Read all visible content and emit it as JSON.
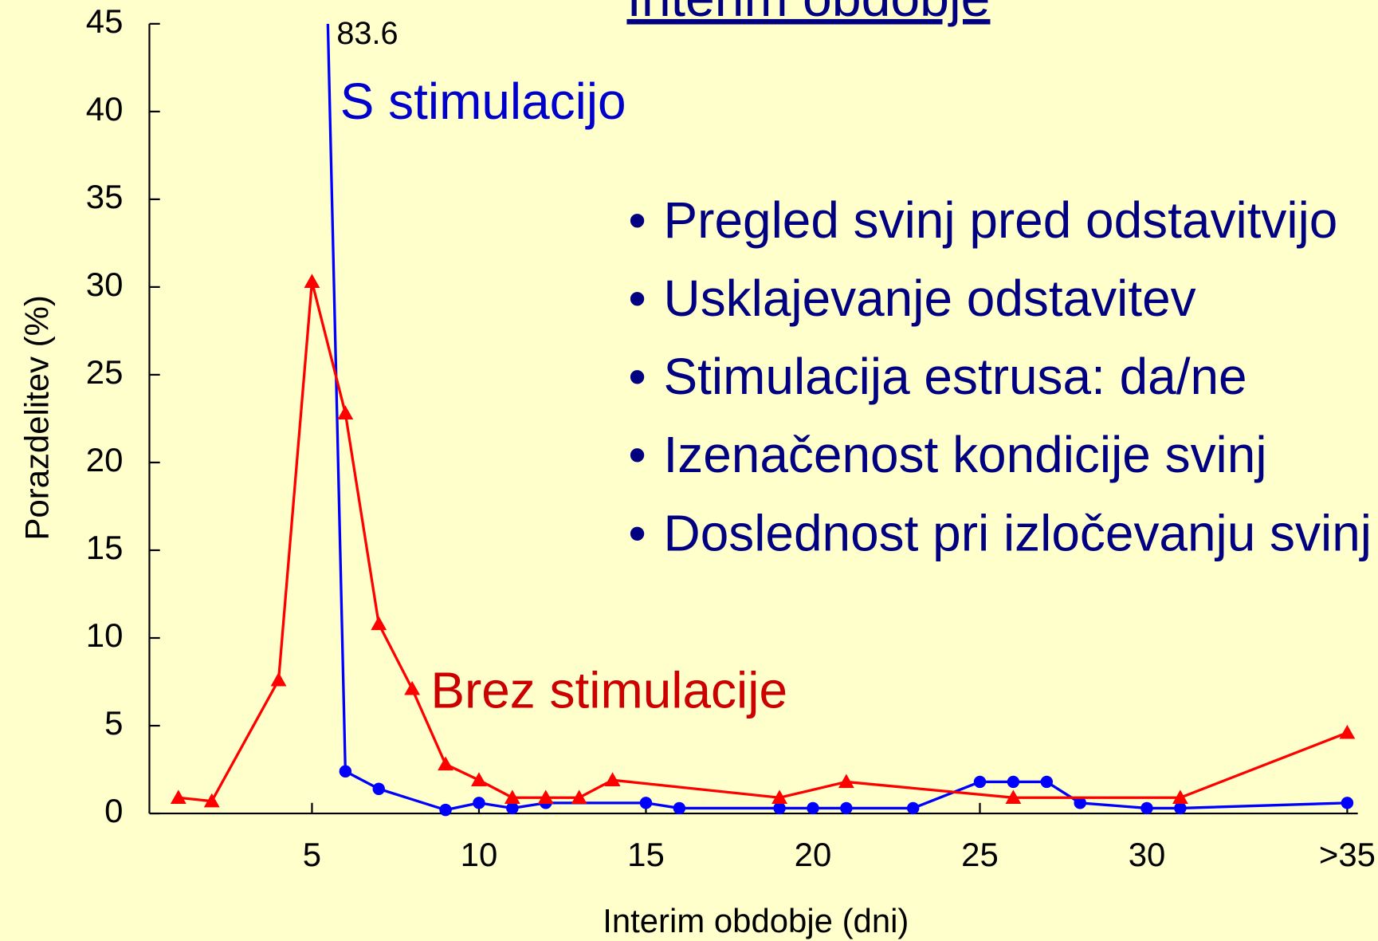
{
  "chart_data": {
    "type": "line",
    "title": "Interim obdobje",
    "xlabel": "Interim obdobje (dni)",
    "ylabel": "Porazdelitev (%)",
    "xlim": [
      0,
      36.3
    ],
    "ylim": [
      0,
      45
    ],
    "xticks": [
      5,
      10,
      15,
      20,
      25,
      30,
      {
        "value": 36,
        "label": ">35"
      }
    ],
    "yticks": [
      0,
      5,
      10,
      15,
      20,
      25,
      30,
      35,
      40,
      45
    ],
    "series": [
      {
        "name": "S stimulacijo",
        "color": "#0000ff",
        "marker": "circle",
        "x": [
          5,
          6,
          7,
          9,
          10,
          11,
          12,
          15,
          16,
          19,
          20,
          21,
          23,
          25,
          26,
          27,
          28,
          30,
          31,
          36
        ],
        "values": [
          83.6,
          2.4,
          1.4,
          0.2,
          0.6,
          0.3,
          0.6,
          0.6,
          0.3,
          0.3,
          0.3,
          0.3,
          0.3,
          1.8,
          1.8,
          1.8,
          0.6,
          0.3,
          0.3,
          0.6
        ],
        "value_labels": [
          "83.6",
          null,
          null,
          null,
          null,
          null,
          null,
          null,
          null,
          null,
          null,
          null,
          null,
          null,
          null,
          null,
          null,
          null,
          null,
          null
        ]
      },
      {
        "name": "Brez stimulacije",
        "color": "#ff0000",
        "marker": "triangle",
        "x": [
          1,
          2,
          4,
          5,
          6,
          7,
          8,
          9,
          10,
          11,
          12,
          13,
          14,
          19,
          21,
          26,
          31,
          36
        ],
        "values": [
          0.9,
          0.7,
          7.6,
          30.3,
          22.8,
          10.8,
          7.1,
          2.8,
          1.9,
          0.9,
          0.9,
          0.9,
          1.9,
          0.9,
          1.8,
          0.9,
          0.9,
          4.6
        ]
      }
    ]
  },
  "bullets": [
    "Pregled svinj pred odstavitvijo",
    "Usklajevanje odstavitev",
    "Stimulacija estrusa: da/ne",
    "Izenačenost kondicije svinj",
    "Doslednost pri izločevanju svinj"
  ]
}
